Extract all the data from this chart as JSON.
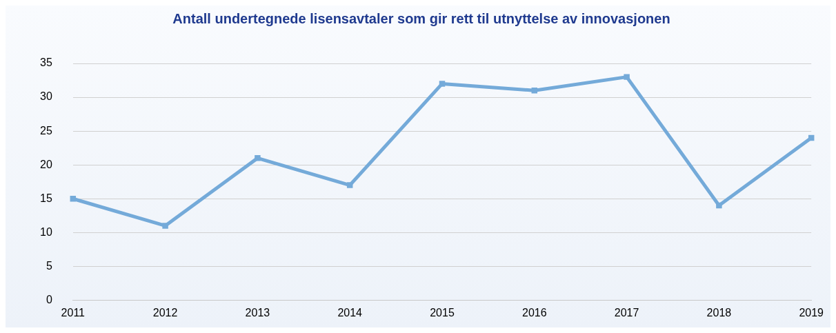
{
  "chart_data": {
    "type": "line",
    "title": "Antall undertegnede lisensavtaler som gir rett til utnyttelse av innovasjonen",
    "categories": [
      "2011",
      "2012",
      "2013",
      "2014",
      "2015",
      "2016",
      "2017",
      "2018",
      "2019"
    ],
    "series": [
      {
        "color": "#74aad9",
        "values": [
          15,
          11,
          21,
          17,
          32,
          31,
          33,
          14,
          24
        ]
      }
    ],
    "ylim": [
      0,
      35
    ],
    "yticks": [
      0,
      5,
      10,
      15,
      20,
      25,
      30,
      35
    ],
    "grid": "y",
    "legend": false,
    "marker": "square",
    "line_style": "solid"
  }
}
